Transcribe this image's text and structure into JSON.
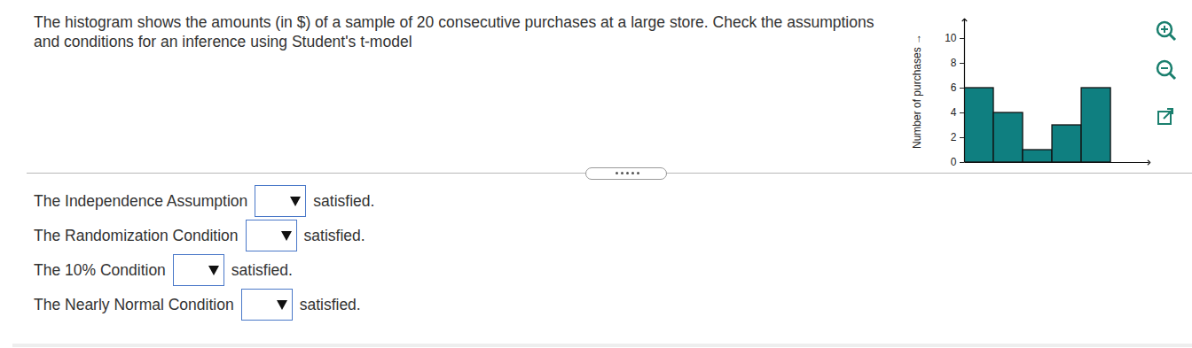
{
  "question": "The histogram shows the amounts (in $) of a sample of 20 consecutive purchases at a large store. Check the assumptions and conditions for an inference using Student's t-model",
  "items": [
    {
      "label": "The Independence Assumption",
      "after": "satisfied."
    },
    {
      "label": "The Randomization Condition",
      "after": "satisfied."
    },
    {
      "label": "The 10% Condition",
      "after": "satisfied."
    },
    {
      "label": "The Nearly Normal Condition",
      "after": "satisfied."
    }
  ],
  "chart_data": {
    "type": "histogram",
    "categories": [
      null,
      null,
      null,
      null,
      null
    ],
    "values": [
      6,
      4,
      1,
      3,
      6
    ],
    "color": "#0f7f80",
    "ylabel": "Number of purchases",
    "ylim": [
      0,
      11.5
    ],
    "yticks": [
      0,
      2,
      4,
      6,
      8,
      10
    ],
    "tick_labels": "y"
  }
}
